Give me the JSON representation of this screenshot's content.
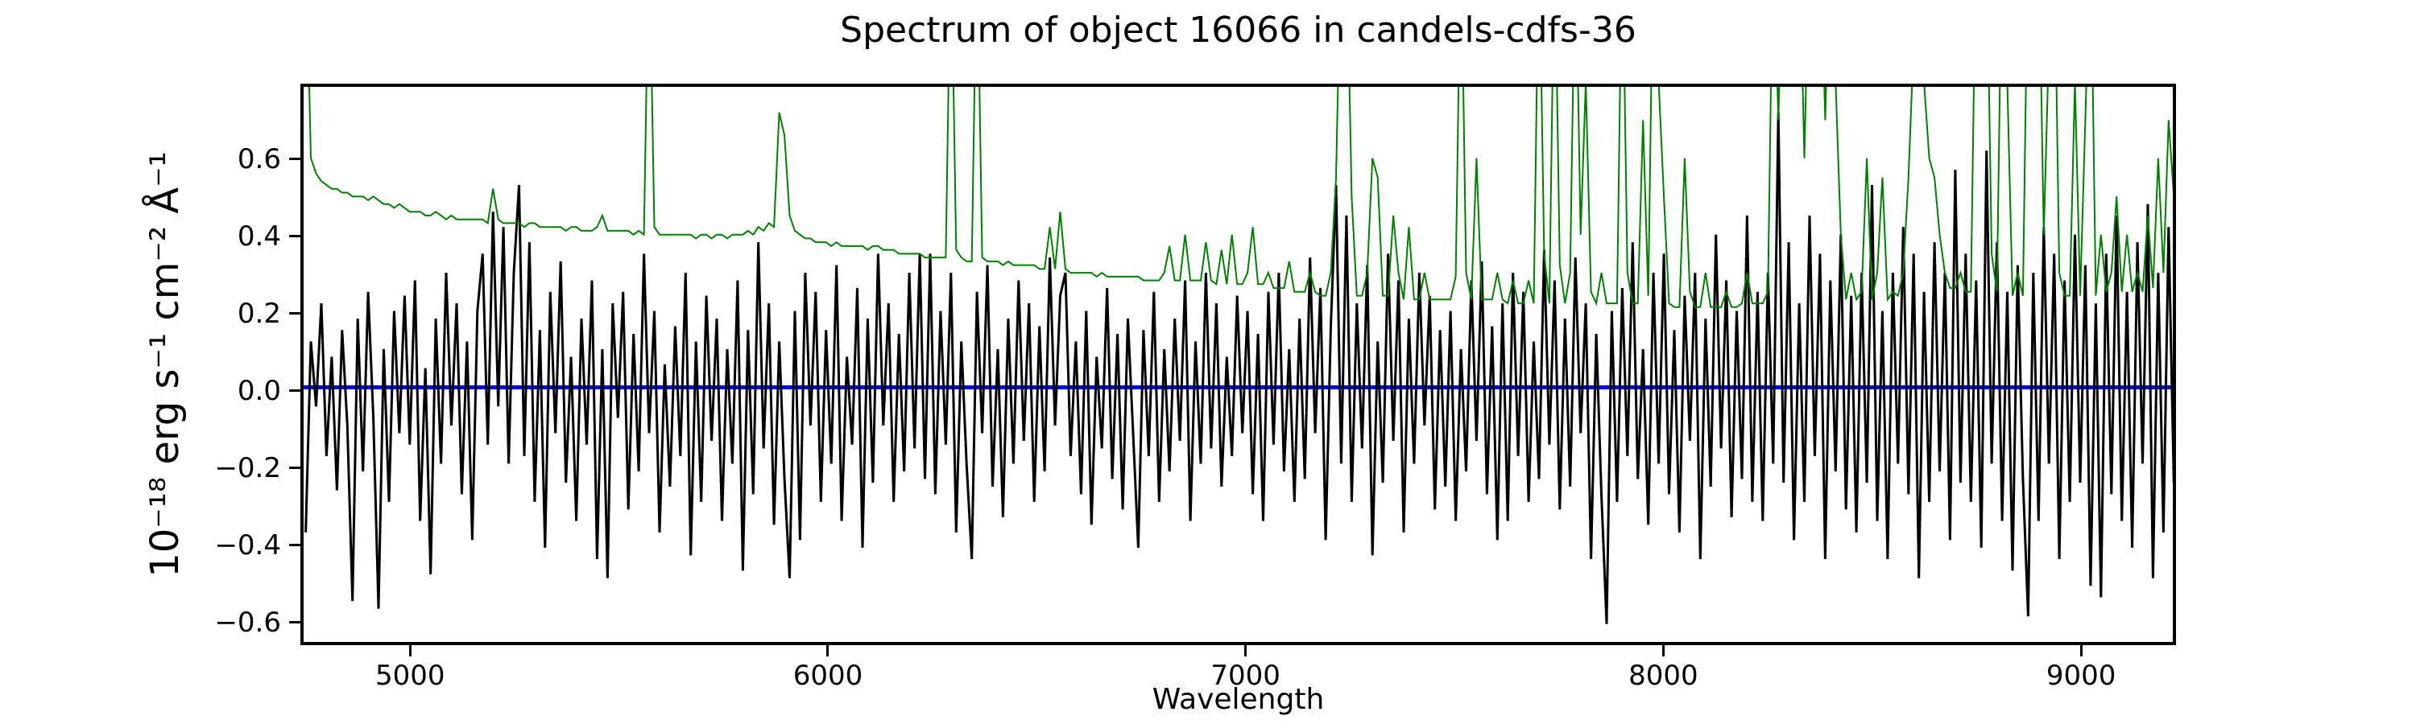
{
  "figure": {
    "title": "Spectrum of object 16066 in candels-cdfs-36",
    "xlabel": "Wavelength",
    "ylabel": "10⁻¹⁸ erg s⁻¹ cm⁻² Å⁻¹"
  },
  "colors": {
    "flux": "#000000",
    "sky": "#008000",
    "zero_line": "#0000ff",
    "axis": "#000000",
    "background": "#ffffff"
  },
  "chart_data": {
    "type": "line",
    "title": "Spectrum of object 16066 in candels-cdfs-36",
    "xlabel": "Wavelength",
    "ylabel": "10⁻¹⁸ erg s⁻¹ cm⁻² Å⁻¹",
    "xlim": [
      4745,
      9235
    ],
    "ylim": [
      -0.667,
      0.787
    ],
    "grid": false,
    "legend": null,
    "xticks": {
      "values": [
        5000,
        6000,
        7000,
        8000,
        9000
      ],
      "labels": [
        "5000",
        "6000",
        "7000",
        "8000",
        "9000"
      ]
    },
    "yticks": {
      "values": [
        0.6,
        0.4,
        0.2,
        0.0,
        -0.2,
        -0.4,
        -0.6
      ],
      "labels": [
        "0.6",
        "0.4",
        "0.2",
        "0.0",
        "−0.2",
        "−0.4",
        "−0.6"
      ]
    },
    "x_start": 4750,
    "x_step": 12.5,
    "series": [
      {
        "name": "zero-line",
        "color": "#0000ff",
        "width": 5,
        "constant": 0.0
      },
      {
        "name": "flux-spectrum",
        "color": "#000000",
        "width": 3,
        "values": [
          -0.38,
          0.12,
          -0.05,
          0.22,
          -0.18,
          0.08,
          -0.27,
          0.15,
          -0.1,
          -0.56,
          0.18,
          -0.22,
          0.25,
          -0.08,
          -0.58,
          0.1,
          -0.3,
          0.2,
          -0.12,
          0.24,
          -0.15,
          0.28,
          -0.35,
          0.05,
          -0.49,
          0.18,
          -0.2,
          0.3,
          -0.1,
          0.22,
          -0.28,
          0.12,
          -0.4,
          0.2,
          0.35,
          -0.15,
          0.46,
          -0.05,
          0.42,
          -0.2,
          0.3,
          0.53,
          -0.18,
          0.38,
          -0.3,
          0.15,
          -0.42,
          0.25,
          -0.12,
          0.33,
          -0.25,
          0.08,
          -0.35,
          0.18,
          -0.15,
          0.28,
          -0.45,
          0.1,
          -0.5,
          0.22,
          -0.08,
          0.25,
          -0.32,
          0.14,
          -0.22,
          0.35,
          -0.12,
          0.2,
          -0.38,
          0.06,
          -0.26,
          0.16,
          -0.18,
          0.3,
          -0.44,
          0.12,
          -0.3,
          0.24,
          -0.14,
          0.18,
          -0.35,
          0.1,
          -0.2,
          0.28,
          -0.48,
          0.15,
          -0.28,
          0.38,
          -0.16,
          0.22,
          -0.36,
          0.12,
          -0.24,
          -0.5,
          0.2,
          -0.4,
          0.3,
          -0.1,
          0.25,
          -0.3,
          0.15,
          -0.2,
          0.32,
          -0.35,
          0.08,
          -0.15,
          0.26,
          -0.42,
          0.18,
          -0.25,
          0.35,
          -0.1,
          0.22,
          -0.3,
          0.14,
          -0.22,
          0.3,
          -0.16,
          0.35,
          -0.24,
          0.35,
          -0.28,
          0.2,
          -0.15,
          0.3,
          -0.38,
          0.12,
          -0.2,
          -0.45,
          0.25,
          -0.12,
          0.32,
          -0.26,
          0.1,
          -0.34,
          0.18,
          -0.2,
          0.28,
          -0.14,
          0.22,
          -0.3,
          0.16,
          -0.22,
          0.34,
          -0.1,
          0.24,
          0.3,
          -0.18,
          0.12,
          -0.28,
          0.2,
          -0.36,
          0.08,
          -0.16,
          0.26,
          -0.24,
          0.14,
          -0.32,
          0.18,
          -0.12,
          -0.42,
          0.15,
          -0.18,
          0.25,
          -0.3,
          0.1,
          -0.22,
          0.18,
          -0.14,
          0.28,
          -0.35,
          0.12,
          -0.2,
          0.3,
          -0.16,
          0.22,
          -0.26,
          0.08,
          -0.18,
          0.24,
          -0.12,
          0.2,
          -0.28,
          0.14,
          -0.35,
          0.25,
          -0.15,
          0.3,
          -0.22,
          0.1,
          -0.3,
          0.18,
          -0.24,
          0.34,
          -0.12,
          0.26,
          -0.4,
          0.16,
          0.53,
          -0.2,
          0.45,
          -0.3,
          0.22,
          -0.16,
          0.32,
          -0.44,
          0.12,
          -0.25,
          0.35,
          -0.14,
          0.28,
          -0.38,
          0.18,
          -0.2,
          0.3,
          -0.1,
          0.24,
          -0.32,
          0.15,
          -0.26,
          0.2,
          -0.35,
          0.1,
          -0.22,
          0.28,
          -0.14,
          0.33,
          -0.28,
          0.16,
          -0.4,
          0.22,
          -0.35,
          0.3,
          -0.18,
          0.25,
          -0.3,
          0.12,
          -0.24,
          0.36,
          -0.15,
          0.28,
          -0.32,
          0.18,
          -0.26,
          0.34,
          -0.12,
          0.22,
          -0.45,
          0.14,
          -0.28,
          -0.62,
          0.2,
          -0.3,
          0.26,
          -0.18,
          0.38,
          -0.24,
          0.1,
          -0.36,
          0.3,
          -0.2,
          0.35,
          -0.28,
          0.15,
          -0.38,
          0.24,
          -0.14,
          0.3,
          -0.45,
          0.18,
          -0.26,
          0.4,
          -0.16,
          0.28,
          -0.34,
          0.2,
          -0.24,
          0.45,
          -0.3,
          0.25,
          -0.35,
          0.3,
          -0.2,
          0.72,
          -0.25,
          0.38,
          -0.4,
          0.22,
          -0.3,
          0.45,
          -0.18,
          0.35,
          -0.45,
          0.28,
          -0.22,
          0.4,
          -0.32,
          0.24,
          -0.38,
          0.3,
          -0.25,
          0.53,
          -0.35,
          0.2,
          -0.45,
          0.3,
          -0.2,
          0.42,
          -0.28,
          0.35,
          -0.5,
          0.25,
          -0.3,
          0.38,
          -0.22,
          0.3,
          -0.4,
          0.57,
          -0.25,
          0.35,
          -0.3,
          0.28,
          -0.42,
          0.62,
          -0.2,
          0.38,
          -0.35,
          0.25,
          -0.48,
          0.32,
          -0.24,
          -0.6,
          0.3,
          -0.35,
          0.42,
          -0.2,
          0.35,
          -0.45,
          0.28,
          -0.3,
          0.4,
          -0.25,
          0.32,
          -0.52,
          0.22,
          -0.55,
          0.35,
          -0.28,
          0.45,
          -0.35,
          0.25,
          -0.42,
          0.38,
          -0.2,
          0.48,
          -0.5,
          0.3,
          -0.38,
          0.42,
          -0.25
        ]
      },
      {
        "name": "sky-noise-spectrum",
        "color": "#008000",
        "width": 2,
        "values": [
          1.2,
          0.6,
          0.56,
          0.54,
          0.53,
          0.52,
          0.52,
          0.51,
          0.51,
          0.5,
          0.5,
          0.5,
          0.49,
          0.5,
          0.49,
          0.48,
          0.48,
          0.47,
          0.48,
          0.47,
          0.46,
          0.46,
          0.46,
          0.45,
          0.45,
          0.46,
          0.45,
          0.44,
          0.45,
          0.44,
          0.44,
          0.44,
          0.44,
          0.44,
          0.44,
          0.43,
          0.52,
          0.44,
          0.43,
          0.43,
          0.43,
          0.43,
          0.42,
          0.43,
          0.43,
          0.42,
          0.42,
          0.42,
          0.42,
          0.42,
          0.41,
          0.42,
          0.42,
          0.41,
          0.41,
          0.41,
          0.42,
          0.45,
          0.41,
          0.41,
          0.41,
          0.41,
          0.41,
          0.4,
          0.41,
          0.4,
          1.2,
          0.42,
          0.4,
          0.4,
          0.4,
          0.4,
          0.4,
          0.4,
          0.4,
          0.39,
          0.4,
          0.4,
          0.39,
          0.4,
          0.4,
          0.39,
          0.4,
          0.4,
          0.4,
          0.41,
          0.4,
          0.42,
          0.41,
          0.43,
          0.42,
          0.72,
          0.66,
          0.45,
          0.41,
          0.4,
          0.39,
          0.39,
          0.38,
          0.38,
          0.38,
          0.37,
          0.38,
          0.37,
          0.37,
          0.37,
          0.37,
          0.37,
          0.36,
          0.37,
          0.37,
          0.36,
          0.36,
          0.36,
          0.35,
          0.35,
          0.35,
          0.35,
          0.35,
          0.34,
          0.34,
          0.34,
          0.34,
          0.34,
          1.2,
          0.36,
          0.34,
          0.33,
          0.33,
          1.2,
          0.34,
          0.33,
          0.33,
          0.33,
          0.32,
          0.33,
          0.32,
          0.32,
          0.32,
          0.32,
          0.32,
          0.31,
          0.31,
          0.42,
          0.31,
          0.46,
          0.31,
          0.3,
          0.3,
          0.3,
          0.3,
          0.3,
          0.29,
          0.3,
          0.29,
          0.29,
          0.29,
          0.29,
          0.29,
          0.29,
          0.29,
          0.28,
          0.28,
          0.28,
          0.28,
          0.3,
          0.37,
          0.28,
          0.28,
          0.4,
          0.28,
          0.28,
          0.28,
          0.38,
          0.28,
          0.27,
          0.36,
          0.27,
          0.4,
          0.27,
          0.27,
          0.3,
          0.42,
          0.27,
          0.27,
          0.3,
          0.26,
          0.26,
          0.26,
          0.33,
          0.25,
          0.25,
          0.25,
          0.3,
          0.25,
          0.24,
          0.24,
          0.3,
          0.55,
          1.2,
          1.2,
          0.5,
          0.24,
          0.24,
          0.3,
          0.6,
          0.55,
          0.24,
          0.24,
          0.45,
          0.3,
          0.23,
          0.42,
          0.23,
          0.23,
          0.3,
          0.23,
          0.23,
          0.23,
          0.23,
          0.23,
          0.29,
          1.2,
          0.3,
          0.23,
          0.6,
          0.23,
          0.23,
          0.23,
          0.3,
          0.23,
          0.22,
          0.28,
          0.22,
          0.22,
          0.28,
          0.22,
          1.2,
          0.35,
          0.22,
          1.2,
          0.32,
          0.22,
          0.3,
          1.2,
          0.4,
          0.8,
          0.25,
          0.22,
          0.3,
          0.22,
          0.22,
          0.22,
          1.2,
          0.3,
          0.22,
          0.22,
          0.7,
          0.24,
          1.2,
          0.8,
          0.5,
          0.22,
          0.21,
          0.21,
          0.6,
          0.25,
          0.21,
          0.21,
          0.3,
          0.21,
          0.21,
          0.21,
          0.25,
          0.21,
          0.21,
          0.22,
          0.3,
          0.22,
          0.22,
          0.22,
          0.25,
          1.2,
          0.7,
          1.2,
          1.2,
          0.8,
          1.2,
          0.6,
          1.2,
          0.9,
          1.2,
          0.7,
          1.2,
          0.8,
          0.4,
          0.23,
          0.3,
          0.23,
          0.25,
          0.6,
          0.23,
          0.3,
          0.55,
          0.23,
          0.25,
          0.24,
          0.3,
          0.55,
          0.9,
          1.2,
          0.8,
          0.6,
          0.55,
          0.4,
          0.3,
          0.26,
          0.26,
          0.3,
          0.25,
          0.25,
          1.2,
          0.9,
          1.2,
          0.35,
          0.25,
          1.2,
          0.8,
          0.24,
          0.3,
          0.24,
          1.2,
          1.2,
          1.2,
          0.4,
          0.9,
          1.2,
          0.3,
          0.24,
          0.24,
          0.8,
          0.24,
          0.7,
          1.2,
          0.24,
          0.4,
          0.25,
          0.3,
          0.5,
          0.25,
          0.4,
          0.25,
          0.3,
          0.25,
          0.45,
          0.26,
          0.6,
          0.3,
          0.7,
          0.5
        ]
      }
    ]
  }
}
